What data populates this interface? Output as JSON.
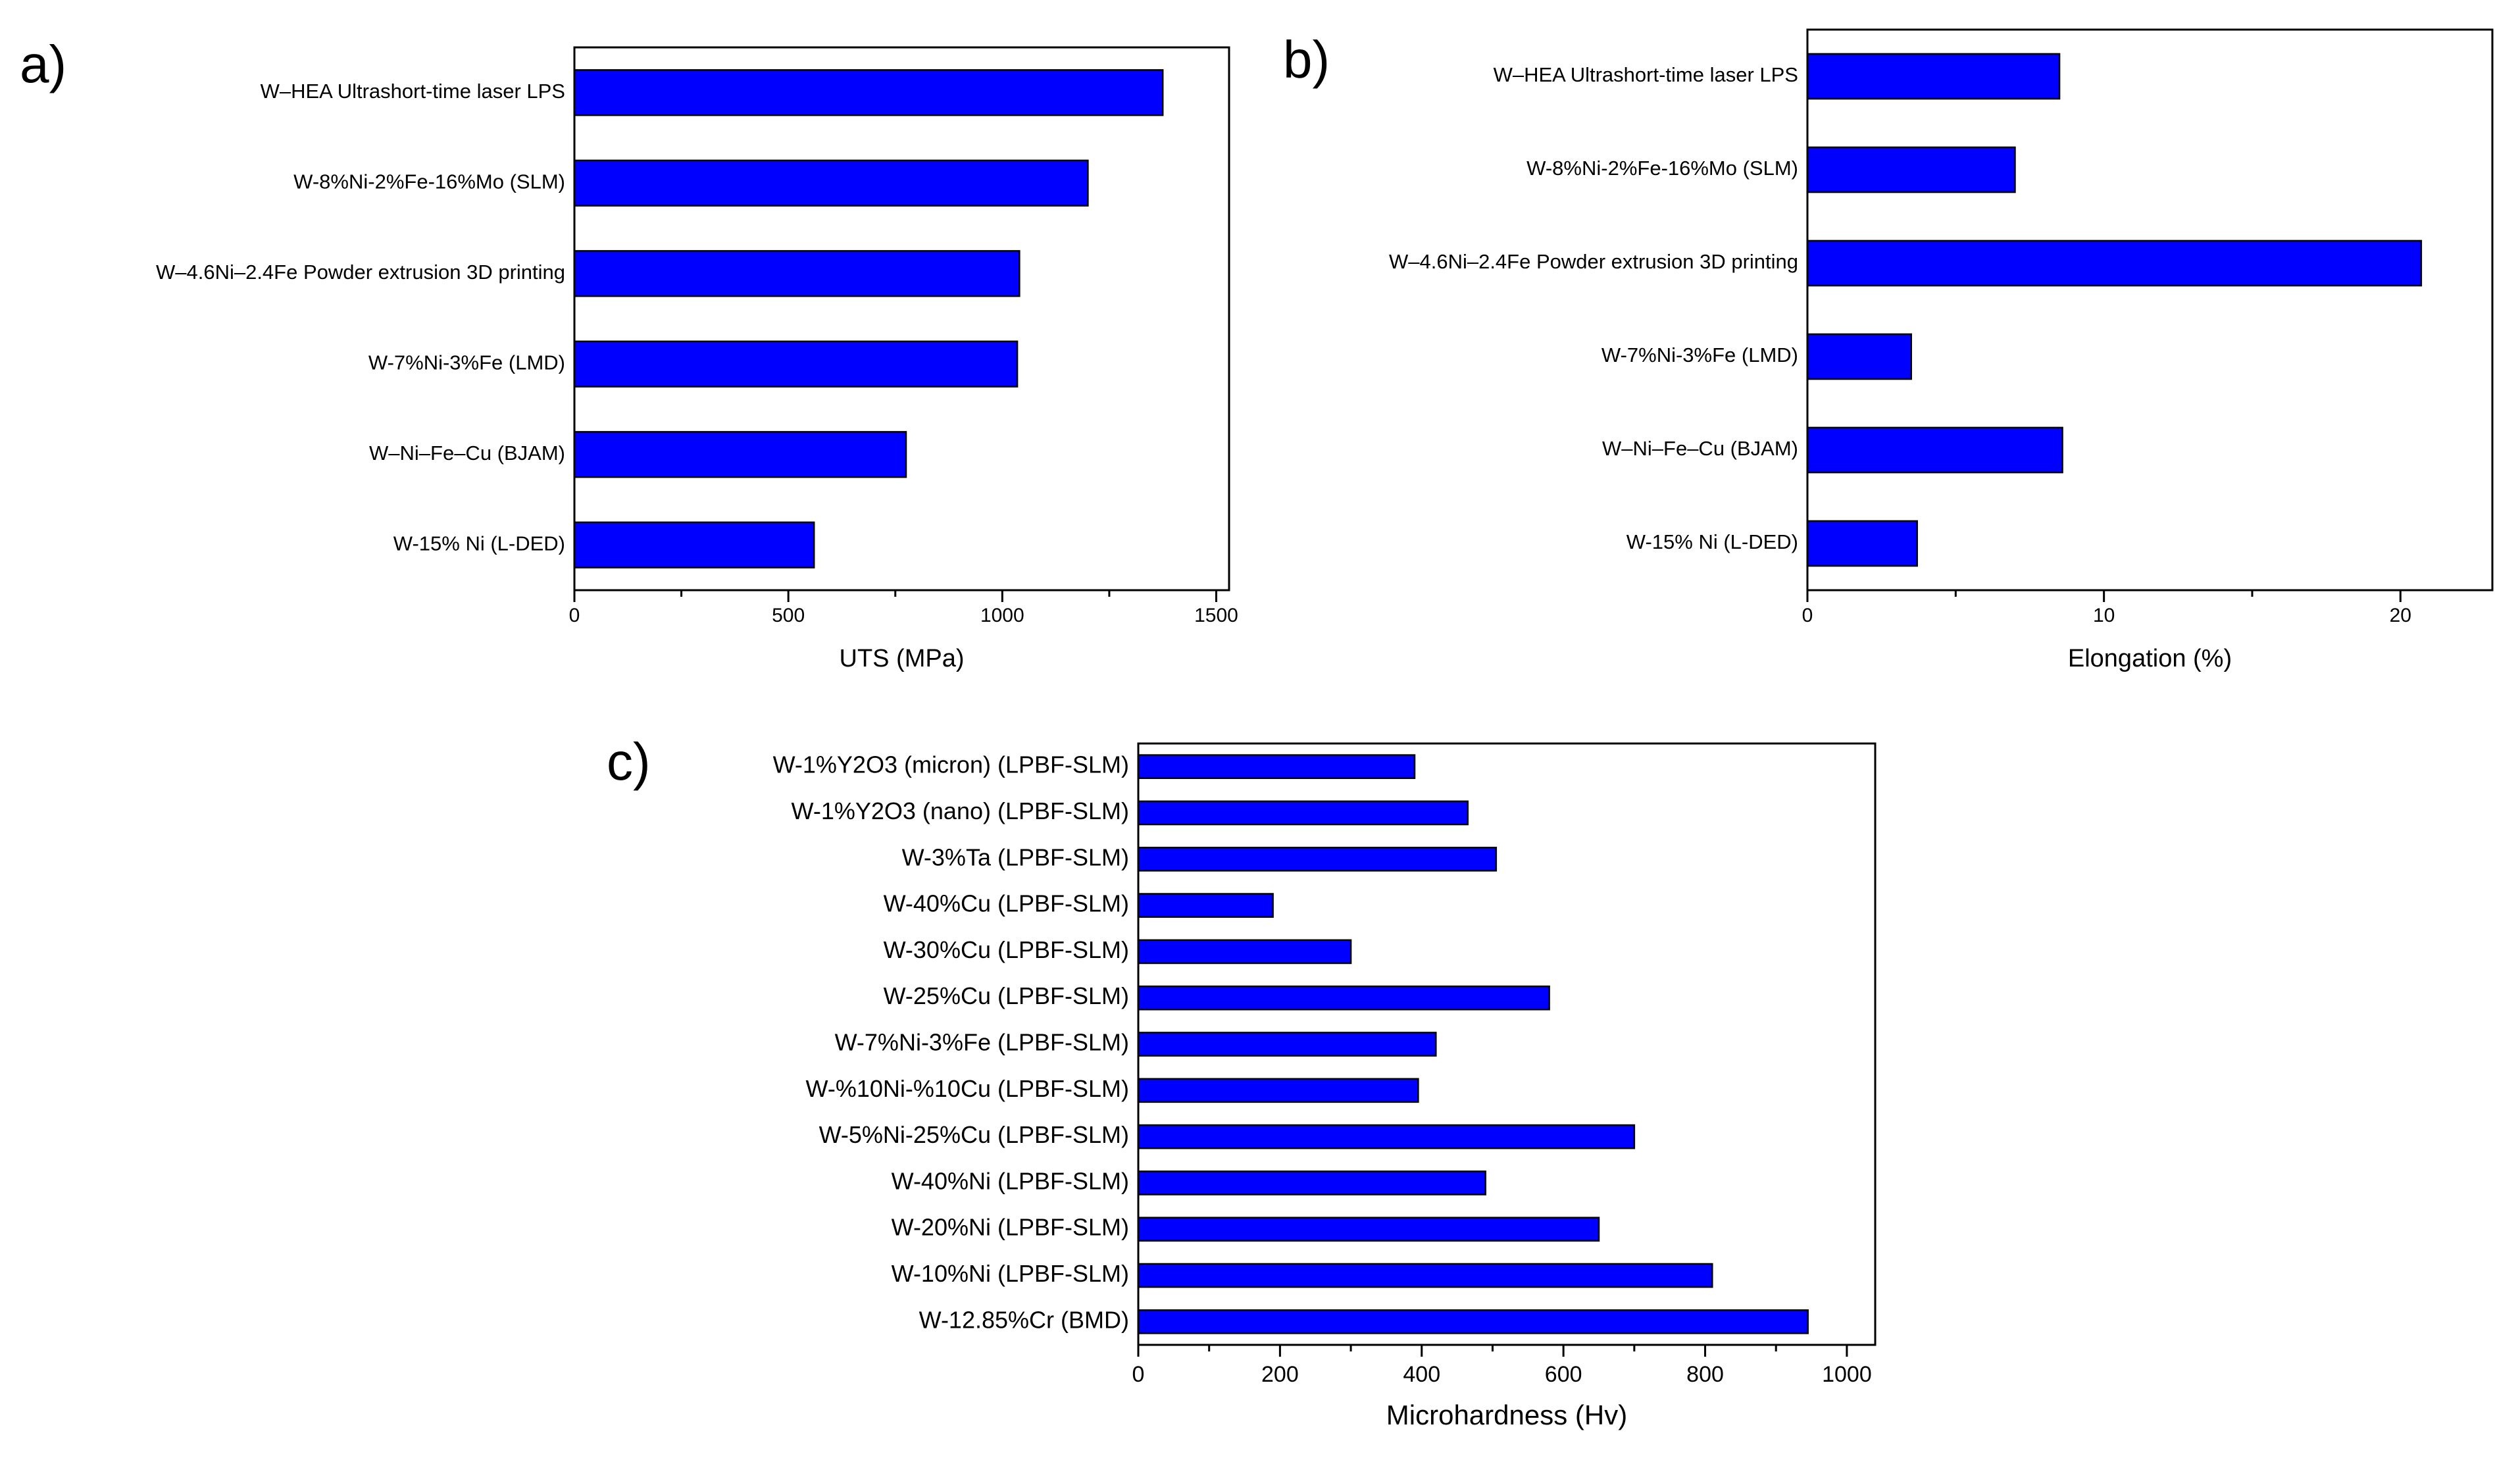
{
  "colors": {
    "bar": "#0000ff",
    "axis": "#000000",
    "background": "#ffffff"
  },
  "chart_data": [
    {
      "panel": "a)",
      "type": "bar",
      "orientation": "horizontal",
      "categories": [
        "W–HEA Ultrashort-time laser LPS",
        "W-8%Ni-2%Fe-16%Mo (SLM)",
        "W–4.6Ni–2.4Fe Powder extrusion 3D printing",
        "W-7%Ni-3%Fe (LMD)",
        "W–Ni–Fe–Cu (BJAM)",
        "W-15% Ni (L-DED)"
      ],
      "values": [
        1375,
        1200,
        1040,
        1035,
        775,
        560
      ],
      "xlabel": "UTS (MPa)",
      "xlim": [
        0,
        1530
      ],
      "xticks": [
        "0",
        "500",
        "1000",
        "1500"
      ],
      "xtick_values": [
        0,
        500,
        1000,
        1500
      ],
      "minor_tick_step": 250
    },
    {
      "panel": "b)",
      "type": "bar",
      "orientation": "horizontal",
      "categories": [
        "W–HEA Ultrashort-time laser LPS",
        "W-8%Ni-2%Fe-16%Mo (SLM)",
        "W–4.6Ni–2.4Fe Powder extrusion 3D printing",
        "W-7%Ni-3%Fe (LMD)",
        "W–Ni–Fe–Cu (BJAM)",
        "W-15% Ni (L-DED)"
      ],
      "values": [
        8.5,
        7.0,
        20.7,
        3.5,
        8.6,
        3.7
      ],
      "xlabel": "Elongation (%)",
      "xlim": [
        0,
        23.1
      ],
      "xticks": [
        "0",
        "10",
        "20"
      ],
      "xtick_values": [
        0,
        10,
        20
      ],
      "minor_tick_step": 5
    },
    {
      "panel": "c)",
      "type": "bar",
      "orientation": "horizontal",
      "categories": [
        "W-1%Y2O3 (micron) (LPBF-SLM)",
        "W-1%Y2O3 (nano) (LPBF-SLM)",
        "W-3%Ta (LPBF-SLM)",
        "W-40%Cu (LPBF-SLM)",
        "W-30%Cu (LPBF-SLM)",
        "W-25%Cu (LPBF-SLM)",
        "W-7%Ni-3%Fe (LPBF-SLM)",
        "W-%10Ni-%10Cu (LPBF-SLM)",
        "W-5%Ni-25%Cu (LPBF-SLM)",
        "W-40%Ni (LPBF-SLM)",
        "W-20%Ni (LPBF-SLM)",
        "W-10%Ni (LPBF-SLM)",
        "W-12.85%Cr (BMD)"
      ],
      "values": [
        390,
        465,
        505,
        190,
        300,
        580,
        420,
        395,
        700,
        490,
        650,
        810,
        945
      ],
      "xlabel": "Microhardness (Hv)",
      "xlim": [
        0,
        1040
      ],
      "xticks": [
        "0",
        "200",
        "400",
        "600",
        "800",
        "1000"
      ],
      "xtick_values": [
        0,
        200,
        400,
        600,
        800,
        1000
      ],
      "minor_tick_step": 100
    }
  ]
}
